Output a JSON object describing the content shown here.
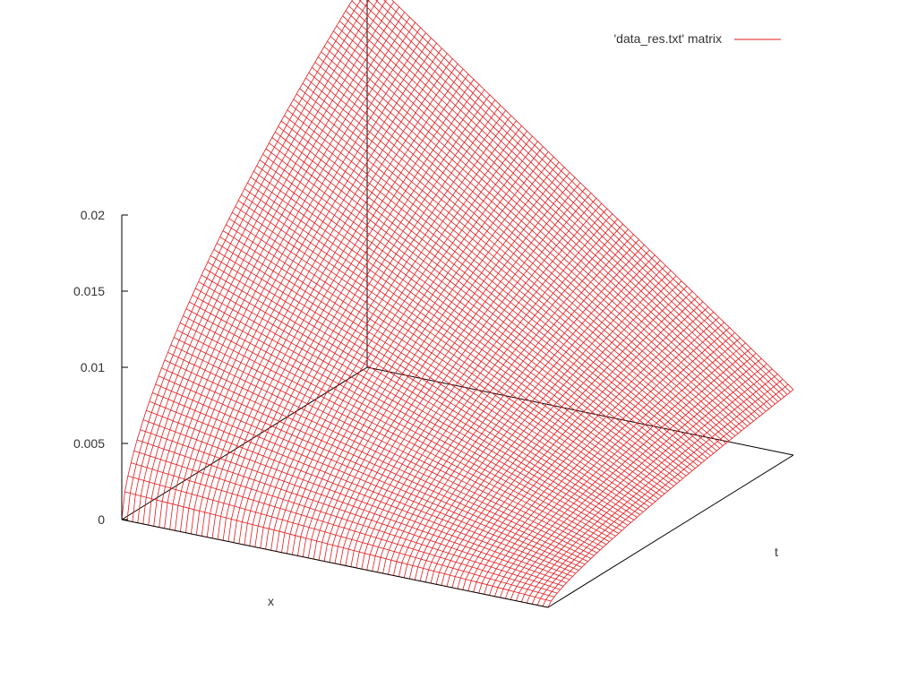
{
  "chart_data": {
    "type": "surface",
    "render_style": "wireframe-mesh",
    "legend": {
      "label": "'data_res.txt' matrix",
      "placement": "top-right"
    },
    "axes": {
      "x": {
        "label": "x",
        "range": [
          0,
          1
        ]
      },
      "t": {
        "label": "t",
        "range": [
          0,
          1
        ]
      },
      "z": {
        "label": "",
        "range": [
          0,
          0.02
        ],
        "ticks": [
          0,
          0.005,
          0.01,
          0.015,
          0.02
        ],
        "tick_labels": [
          "0",
          "0.005",
          "0.01",
          "0.015",
          "0.02"
        ]
      }
    },
    "grid": false,
    "corners": [
      {
        "x": 0,
        "t": 0,
        "z": 0
      },
      {
        "x": 1,
        "t": 0,
        "z": 0
      },
      {
        "x": 1,
        "t": 1,
        "z": 0.0043
      },
      {
        "x": 0,
        "t": 1,
        "z": 0.0257
      }
    ],
    "mesh_resolution": {
      "x_lines": 81,
      "t_lines": 81
    }
  },
  "colors": {
    "series": "#e41a1c",
    "axis": "#000000",
    "text": "#333333"
  }
}
